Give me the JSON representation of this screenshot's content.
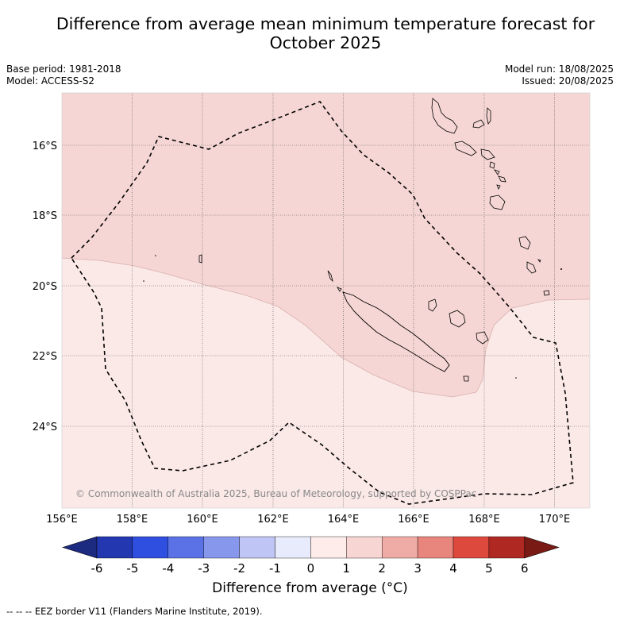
{
  "title": {
    "line1": "Difference from average mean minimum temperature forecast for",
    "line2": "October 2025"
  },
  "meta": {
    "base_period": "Base period: 1981-2018",
    "model": "Model: ACCESS-S2",
    "model_run": "Model run: 18/08/2025",
    "issued": "Issued: 20/08/2025"
  },
  "map": {
    "lon_ticks": [
      "156°E",
      "158°E",
      "160°E",
      "162°E",
      "164°E",
      "166°E",
      "168°E",
      "170°E"
    ],
    "lat_ticks": [
      "16°S",
      "18°S",
      "20°S",
      "22°S",
      "24°S"
    ],
    "copyright": "© Commonwealth of Australia 2025, Bureau of Meteorology, supported by COSPPac",
    "region_colors": {
      "band_0_1": "#fbe9e8",
      "band_1_2": "#f5d6d4"
    }
  },
  "colorbar": {
    "label": "Difference from average (°C)",
    "ticks": [
      "-6",
      "-5",
      "-4",
      "-3",
      "-2",
      "-1",
      "0",
      "1",
      "2",
      "3",
      "4",
      "5",
      "6"
    ],
    "colors": [
      "#1c2a80",
      "#2337b0",
      "#2f4fe0",
      "#5a72e6",
      "#8797eb",
      "#bfc5f4",
      "#e8ebfb",
      "#fdecea",
      "#f7d5d2",
      "#efaca6",
      "#e8857c",
      "#dd493c",
      "#b02822",
      "#7a1a14"
    ]
  },
  "footer": "--  --  -- EEZ border V11 (Flanders Marine Institute, 2019)."
}
